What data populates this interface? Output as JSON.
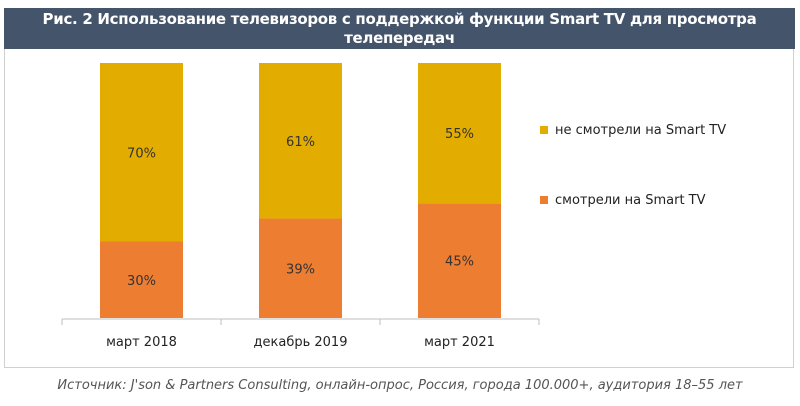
{
  "title": "Рис. 2 Использование телевизоров с поддержкой функции Smart TV для просмотра телепередач",
  "source": "Источник: J'son & Partners Consulting, онлайн-опрос, Россия, города 100.000+, аудитория 18–55  лет",
  "chart_data": {
    "type": "bar",
    "stacked": true,
    "categories": [
      "март 2018",
      "декабрь 2019",
      "март 2021"
    ],
    "series": [
      {
        "name": "смотрели на Smart TV",
        "values": [
          30,
          39,
          45
        ],
        "color": "#ED7D31"
      },
      {
        "name": "не смотрели на Smart TV",
        "values": [
          70,
          61,
          55
        ],
        "color": "#E3AC00"
      }
    ],
    "value_suffix": "%",
    "ylim": [
      0,
      100
    ],
    "grid": false,
    "legend_placement": "right"
  }
}
